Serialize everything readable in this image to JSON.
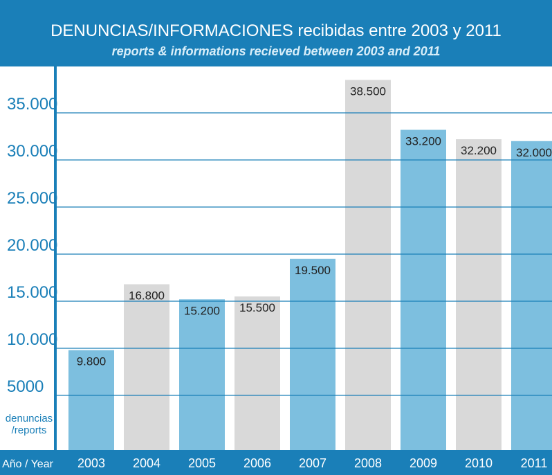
{
  "chart_data": {
    "type": "bar",
    "title": "DENUNCIAS/INFORMACIONES recibidas entre 2003 y 2011",
    "subtitle": "reports & informations recieved between 2003 and 2011",
    "x_label": "Año / Year",
    "y_label": [
      "denuncias",
      "/reports"
    ],
    "categories": [
      "2003",
      "2004",
      "2005",
      "2006",
      "2007",
      "2008",
      "2009",
      "2010",
      "2011"
    ],
    "values": [
      9800,
      16800,
      15200,
      15500,
      19500,
      38500,
      33200,
      32200,
      32000
    ],
    "value_labels": [
      "9.800",
      "16.800",
      "15.200",
      "15.500",
      "19.500",
      "38.500",
      "33.200",
      "32.200",
      "32.000"
    ],
    "colors": [
      "#7dbfdf",
      "#d9d9d9",
      "#7dbfdf",
      "#d9d9d9",
      "#7dbfdf",
      "#d9d9d9",
      "#7dbfdf",
      "#d9d9d9",
      "#7dbfdf"
    ],
    "ylim": [
      0,
      40000
    ],
    "yticks": [
      {
        "value": 5000,
        "label": "5000"
      },
      {
        "value": 10000,
        "label": "10.000"
      },
      {
        "value": 15000,
        "label": "15.000"
      },
      {
        "value": 20000,
        "label": "20.000"
      },
      {
        "value": 25000,
        "label": "25.000"
      },
      {
        "value": 30000,
        "label": "30.000"
      },
      {
        "value": 35000,
        "label": "35.000"
      }
    ],
    "grid": true
  }
}
